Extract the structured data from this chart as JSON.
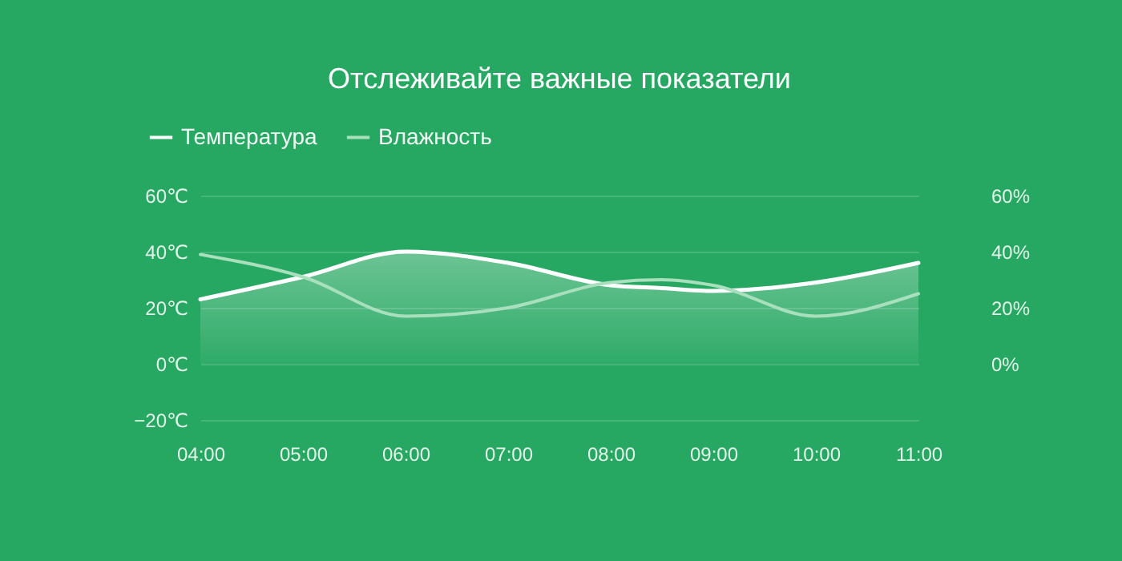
{
  "chart_data": {
    "type": "area",
    "title": "Отслеживайте важные показатели",
    "x": [
      4,
      5,
      6,
      7,
      8,
      8.5,
      9,
      10,
      11
    ],
    "xlim": [
      4,
      11
    ],
    "xticks": [
      {
        "value": 4,
        "label": "04:00"
      },
      {
        "value": 5,
        "label": "05:00"
      },
      {
        "value": 6,
        "label": "06:00"
      },
      {
        "value": 7,
        "label": "07:00"
      },
      {
        "value": 8,
        "label": "08:00"
      },
      {
        "value": 9,
        "label": "09:00"
      },
      {
        "value": 10,
        "label": "10:00"
      },
      {
        "value": 11,
        "label": "11:00"
      }
    ],
    "ylim": [
      -20,
      60
    ],
    "yticks": [
      {
        "value": -20,
        "label": "−20℃"
      },
      {
        "value": 0,
        "label": "0℃"
      },
      {
        "value": 20,
        "label": "20℃"
      },
      {
        "value": 40,
        "label": "40℃"
      },
      {
        "value": 60,
        "label": "60℃"
      }
    ],
    "y2lim": [
      -20,
      60
    ],
    "y2ticks": [
      {
        "value": 0,
        "label": "0%"
      },
      {
        "value": 20,
        "label": "20%"
      },
      {
        "value": 40,
        "label": "40%"
      },
      {
        "value": 60,
        "label": "60%"
      }
    ],
    "series": [
      {
        "name": "Температура",
        "color": "#ffffff",
        "values": [
          23,
          31,
          40,
          36,
          28,
          27,
          26,
          29,
          36
        ]
      },
      {
        "name": "Влажность",
        "color": "#a8e0bd",
        "type": "line",
        "axis": "y2",
        "values": [
          39,
          31,
          17,
          20,
          29,
          30,
          28,
          17,
          25
        ]
      }
    ],
    "grid": "y",
    "legend": "top left",
    "marker": "none",
    "line_style": "solid"
  }
}
